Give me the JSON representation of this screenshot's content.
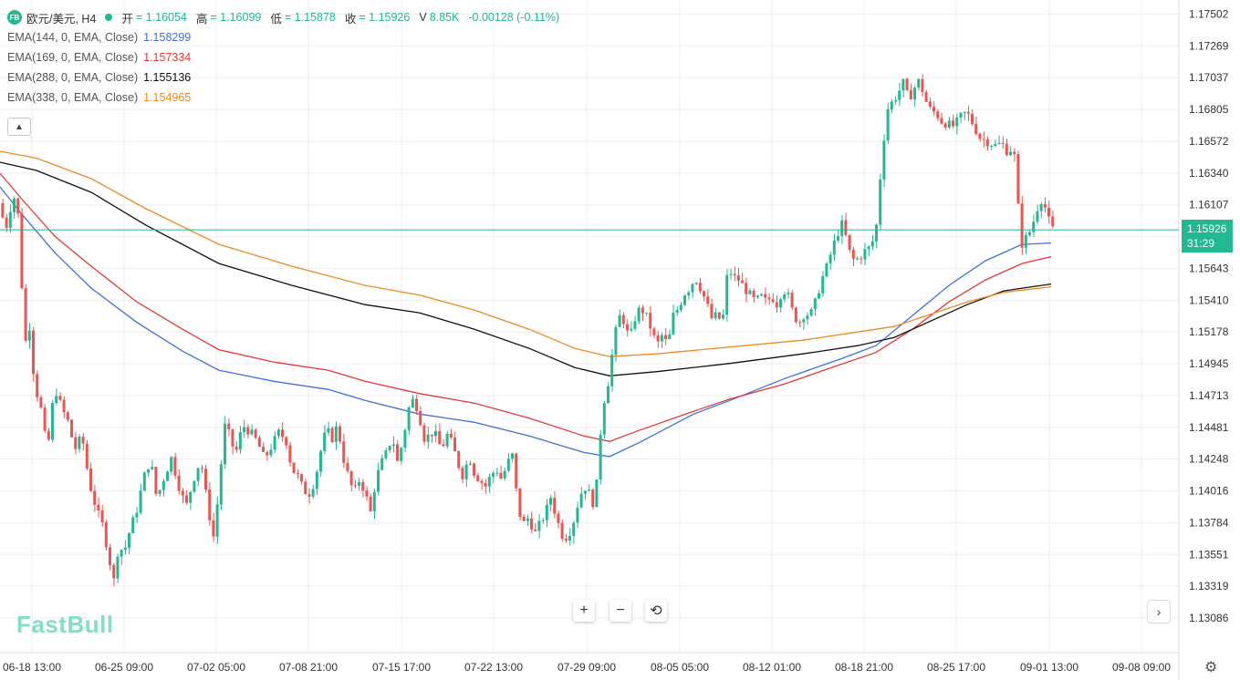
{
  "header": {
    "logo_text": "FB",
    "symbol": "欧元/美元, H4",
    "open_label": "开",
    "open_value": "= 1.16054",
    "high_label": "高",
    "high_value": "= 1.16099",
    "low_label": "低",
    "low_value": "= 1.15878",
    "close_label": "收",
    "close_value": "= 1.15926",
    "volume_label": "V",
    "volume_value": "8.85K",
    "change": "-0.00128 (-0.11%)"
  },
  "indicators": [
    {
      "label": "EMA(144, 0, EMA, Close)",
      "value": "1.158299",
      "color": "#3f6fe0"
    },
    {
      "label": "EMA(169, 0, EMA, Close)",
      "value": "1.157334",
      "color": "#e53935"
    },
    {
      "label": "EMA(288, 0, EMA, Close)",
      "value": "1.155136",
      "color": "#111111"
    },
    {
      "label": "EMA(338, 0, EMA, Close)",
      "value": "1.154965",
      "color": "#ef8a1e"
    }
  ],
  "collapse_icon": "chevron-up-icon",
  "price_axis_labels": [
    "1.17502",
    "1.17269",
    "1.17037",
    "1.16805",
    "1.16572",
    "1.16340",
    "1.16107",
    "1.15643",
    "1.15410",
    "1.15178",
    "1.14945",
    "1.14713",
    "1.14481",
    "1.14248",
    "1.14016",
    "1.13784",
    "1.13551",
    "1.13319",
    "1.13086"
  ],
  "time_axis_labels": [
    "06-18 13:00",
    "06-25 09:00",
    "07-02 05:00",
    "07-08 21:00",
    "07-15 17:00",
    "07-22 13:00",
    "07-29 09:00",
    "08-05 05:00",
    "08-12 01:00",
    "08-18 21:00",
    "08-25 17:00",
    "09-01 13:00",
    "09-08 09:00"
  ],
  "current_price": {
    "value": "1.15926",
    "countdown": "31:29",
    "color": "#21b892"
  },
  "controls": {
    "zoom_in": "+",
    "zoom_out": "−",
    "reset": "⟲",
    "scroll_right": "›",
    "settings": "⚙"
  },
  "watermark": "FastBull",
  "colors": {
    "up": "#21b892",
    "down": "#ef5350",
    "grid": "#eeeeee"
  },
  "chart_data": {
    "type": "candlestick",
    "y_range": [
      1.1298,
      1.1762
    ],
    "path": [
      [
        0,
        1.1612
      ],
      [
        6,
        1.1592
      ],
      [
        12,
        1.161
      ],
      [
        18,
        1.162
      ],
      [
        22,
        1.1585
      ],
      [
        27,
        1.1506
      ],
      [
        32,
        1.1526
      ],
      [
        38,
        1.148
      ],
      [
        45,
        1.1462
      ],
      [
        52,
        1.143
      ],
      [
        60,
        1.1478
      ],
      [
        68,
        1.1462
      ],
      [
        75,
        1.1452
      ],
      [
        82,
        1.1432
      ],
      [
        90,
        1.1442
      ],
      [
        98,
        1.1408
      ],
      [
        106,
        1.1388
      ],
      [
        113,
        1.1376
      ],
      [
        120,
        1.1352
      ],
      [
        125,
        1.1336
      ],
      [
        130,
        1.1362
      ],
      [
        136,
        1.1357
      ],
      [
        142,
        1.1372
      ],
      [
        150,
        1.1388
      ],
      [
        158,
        1.1412
      ],
      [
        165,
        1.1425
      ],
      [
        172,
        1.1396
      ],
      [
        180,
        1.1412
      ],
      [
        188,
        1.1426
      ],
      [
        196,
        1.1406
      ],
      [
        204,
        1.139
      ],
      [
        212,
        1.141
      ],
      [
        220,
        1.1425
      ],
      [
        228,
        1.139
      ],
      [
        234,
        1.1368
      ],
      [
        240,
        1.1402
      ],
      [
        246,
        1.145
      ],
      [
        252,
        1.1442
      ],
      [
        258,
        1.1428
      ],
      [
        266,
        1.145
      ],
      [
        274,
        1.1445
      ],
      [
        282,
        1.1438
      ],
      [
        290,
        1.1425
      ],
      [
        298,
        1.1435
      ],
      [
        306,
        1.1445
      ],
      [
        314,
        1.1438
      ],
      [
        320,
        1.1418
      ],
      [
        327,
        1.1412
      ],
      [
        333,
        1.1402
      ],
      [
        340,
        1.14
      ],
      [
        346,
        1.1412
      ],
      [
        352,
        1.1432
      ],
      [
        358,
        1.1447
      ],
      [
        364,
        1.144
      ],
      [
        370,
        1.145
      ],
      [
        376,
        1.1427
      ],
      [
        382,
        1.1412
      ],
      [
        388,
        1.14
      ],
      [
        394,
        1.141
      ],
      [
        400,
        1.1402
      ],
      [
        406,
        1.1385
      ],
      [
        412,
        1.141
      ],
      [
        418,
        1.1422
      ],
      [
        424,
        1.143
      ],
      [
        430,
        1.1442
      ],
      [
        436,
        1.1422
      ],
      [
        442,
        1.144
      ],
      [
        448,
        1.1462
      ],
      [
        454,
        1.147
      ],
      [
        460,
        1.1456
      ],
      [
        466,
        1.1438
      ],
      [
        472,
        1.1445
      ],
      [
        478,
        1.1442
      ],
      [
        484,
        1.1432
      ],
      [
        490,
        1.1443
      ],
      [
        496,
        1.1436
      ],
      [
        502,
        1.1422
      ],
      [
        508,
        1.1412
      ],
      [
        514,
        1.1428
      ],
      [
        520,
        1.1415
      ],
      [
        526,
        1.141
      ],
      [
        532,
        1.1405
      ],
      [
        538,
        1.1413
      ],
      [
        544,
        1.1418
      ],
      [
        550,
        1.141
      ],
      [
        556,
        1.1422
      ],
      [
        562,
        1.1428
      ],
      [
        568,
        1.1388
      ],
      [
        574,
        1.1378
      ],
      [
        580,
        1.1383
      ],
      [
        586,
        1.137
      ],
      [
        592,
        1.1378
      ],
      [
        598,
        1.1386
      ],
      [
        604,
        1.1398
      ],
      [
        610,
        1.1382
      ],
      [
        616,
        1.137
      ],
      [
        622,
        1.1368
      ],
      [
        628,
        1.1378
      ],
      [
        634,
        1.1394
      ],
      [
        640,
        1.1406
      ],
      [
        646,
        1.14
      ],
      [
        652,
        1.139
      ],
      [
        656,
        1.1422
      ],
      [
        660,
        1.1462
      ],
      [
        666,
        1.1478
      ],
      [
        672,
        1.1506
      ],
      [
        678,
        1.153
      ],
      [
        684,
        1.1526
      ],
      [
        690,
        1.1512
      ],
      [
        696,
        1.1528
      ],
      [
        702,
        1.1536
      ],
      [
        708,
        1.153
      ],
      [
        714,
        1.152
      ],
      [
        720,
        1.1508
      ],
      [
        726,
        1.1516
      ],
      [
        732,
        1.1508
      ],
      [
        738,
        1.153
      ],
      [
        744,
        1.1536
      ],
      [
        750,
        1.1546
      ],
      [
        756,
        1.155
      ],
      [
        762,
        1.1558
      ],
      [
        768,
        1.155
      ],
      [
        774,
        1.154
      ],
      [
        780,
        1.1528
      ],
      [
        786,
        1.153
      ],
      [
        792,
        1.1525
      ],
      [
        798,
        1.1565
      ],
      [
        804,
        1.1558
      ],
      [
        810,
        1.1556
      ],
      [
        816,
        1.155
      ],
      [
        822,
        1.1545
      ],
      [
        828,
        1.154
      ],
      [
        834,
        1.1544
      ],
      [
        840,
        1.154
      ],
      [
        846,
        1.1544
      ],
      [
        852,
        1.1538
      ],
      [
        858,
        1.155
      ],
      [
        864,
        1.1544
      ],
      [
        870,
        1.153
      ],
      [
        876,
        1.1525
      ],
      [
        882,
        1.1532
      ],
      [
        888,
        1.153
      ],
      [
        894,
        1.154
      ],
      [
        900,
        1.1555
      ],
      [
        906,
        1.1565
      ],
      [
        912,
        1.1578
      ],
      [
        918,
        1.159
      ],
      [
        924,
        1.1598
      ],
      [
        930,
        1.1578
      ],
      [
        936,
        1.157
      ],
      [
        942,
        1.1572
      ],
      [
        948,
        1.1577
      ],
      [
        954,
        1.158
      ],
      [
        960,
        1.159
      ],
      [
        966,
        1.164
      ],
      [
        972,
        1.168
      ],
      [
        978,
        1.1686
      ],
      [
        984,
        1.1692
      ],
      [
        990,
        1.17
      ],
      [
        996,
        1.1688
      ],
      [
        1002,
        1.1696
      ],
      [
        1008,
        1.1702
      ],
      [
        1014,
        1.1688
      ],
      [
        1020,
        1.168
      ],
      [
        1026,
        1.1678
      ],
      [
        1032,
        1.1672
      ],
      [
        1038,
        1.167
      ],
      [
        1044,
        1.1668
      ],
      [
        1050,
        1.1672
      ],
      [
        1056,
        1.1678
      ],
      [
        1062,
        1.1676
      ],
      [
        1068,
        1.1668
      ],
      [
        1074,
        1.166
      ],
      [
        1080,
        1.1658
      ],
      [
        1086,
        1.1656
      ],
      [
        1092,
        1.1654
      ],
      [
        1098,
        1.1656
      ],
      [
        1104,
        1.165
      ],
      [
        1110,
        1.1652
      ],
      [
        1114,
        1.164
      ],
      [
        1117,
        1.1596
      ],
      [
        1120,
        1.1582
      ],
      [
        1124,
        1.1586
      ],
      [
        1128,
        1.159
      ],
      [
        1132,
        1.1597
      ],
      [
        1136,
        1.1606
      ],
      [
        1140,
        1.1616
      ],
      [
        1144,
        1.1612
      ],
      [
        1148,
        1.1604
      ],
      [
        1152,
        1.1593
      ]
    ],
    "ema_lines": [
      {
        "name": "EMA(144, 0, EMA, Close)",
        "color": "#3f6fe0",
        "points": [
          [
            0,
            1.1624
          ],
          [
            24,
            1.1604
          ],
          [
            60,
            1.1576
          ],
          [
            100,
            1.155
          ],
          [
            150,
            1.1525
          ],
          [
            200,
            1.1504
          ],
          [
            240,
            1.149
          ],
          [
            300,
            1.1482
          ],
          [
            360,
            1.1476
          ],
          [
            400,
            1.1468
          ],
          [
            460,
            1.1458
          ],
          [
            520,
            1.1452
          ],
          [
            580,
            1.1442
          ],
          [
            640,
            1.143
          ],
          [
            668,
            1.1427
          ],
          [
            700,
            1.1437
          ],
          [
            760,
            1.1458
          ],
          [
            800,
            1.1468
          ],
          [
            860,
            1.1484
          ],
          [
            920,
            1.1498
          ],
          [
            960,
            1.1508
          ],
          [
            1000,
            1.153
          ],
          [
            1040,
            1.1552
          ],
          [
            1080,
            1.157
          ],
          [
            1120,
            1.1582
          ],
          [
            1152,
            1.1583
          ]
        ]
      },
      {
        "name": "EMA(169, 0, EMA, Close)",
        "color": "#e53935",
        "points": [
          [
            0,
            1.1634
          ],
          [
            24,
            1.1615
          ],
          [
            60,
            1.1588
          ],
          [
            100,
            1.1566
          ],
          [
            150,
            1.154
          ],
          [
            200,
            1.152
          ],
          [
            240,
            1.1505
          ],
          [
            300,
            1.1496
          ],
          [
            360,
            1.149
          ],
          [
            400,
            1.1482
          ],
          [
            460,
            1.1473
          ],
          [
            520,
            1.1466
          ],
          [
            580,
            1.1455
          ],
          [
            640,
            1.1442
          ],
          [
            668,
            1.1438
          ],
          [
            700,
            1.1446
          ],
          [
            760,
            1.146
          ],
          [
            800,
            1.1469
          ],
          [
            860,
            1.148
          ],
          [
            920,
            1.1494
          ],
          [
            960,
            1.1503
          ],
          [
            1000,
            1.152
          ],
          [
            1040,
            1.154
          ],
          [
            1080,
            1.1556
          ],
          [
            1120,
            1.1568
          ],
          [
            1152,
            1.1573
          ]
        ]
      },
      {
        "name": "EMA(288, 0, EMA, Close)",
        "color": "#111111",
        "points": [
          [
            0,
            1.1642
          ],
          [
            40,
            1.1636
          ],
          [
            100,
            1.162
          ],
          [
            160,
            1.1596
          ],
          [
            240,
            1.1568
          ],
          [
            320,
            1.1552
          ],
          [
            400,
            1.1538
          ],
          [
            460,
            1.1532
          ],
          [
            520,
            1.152
          ],
          [
            580,
            1.1506
          ],
          [
            630,
            1.1492
          ],
          [
            668,
            1.1486
          ],
          [
            720,
            1.1489
          ],
          [
            800,
            1.1495
          ],
          [
            880,
            1.1502
          ],
          [
            940,
            1.1508
          ],
          [
            980,
            1.1514
          ],
          [
            1020,
            1.1526
          ],
          [
            1060,
            1.1538
          ],
          [
            1100,
            1.1548
          ],
          [
            1152,
            1.1553
          ]
        ]
      },
      {
        "name": "EMA(338, 0, EMA, Close)",
        "color": "#ef8a1e",
        "points": [
          [
            0,
            1.165
          ],
          [
            40,
            1.1645
          ],
          [
            100,
            1.163
          ],
          [
            160,
            1.1608
          ],
          [
            240,
            1.1582
          ],
          [
            320,
            1.1566
          ],
          [
            400,
            1.1552
          ],
          [
            460,
            1.1545
          ],
          [
            520,
            1.1534
          ],
          [
            580,
            1.152
          ],
          [
            630,
            1.1506
          ],
          [
            668,
            1.15
          ],
          [
            720,
            1.1502
          ],
          [
            800,
            1.1507
          ],
          [
            880,
            1.1512
          ],
          [
            940,
            1.1518
          ],
          [
            980,
            1.1522
          ],
          [
            1020,
            1.1531
          ],
          [
            1060,
            1.154
          ],
          [
            1100,
            1.1547
          ],
          [
            1152,
            1.1551
          ]
        ]
      }
    ],
    "last_price": 1.15926,
    "grid": true
  }
}
